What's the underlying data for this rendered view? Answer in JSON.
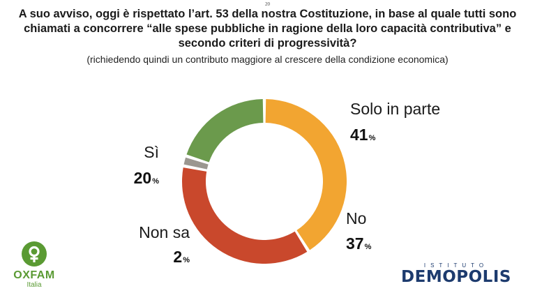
{
  "page": {
    "number": "20",
    "question": "A suo avviso, oggi è rispettato l’art. 53 della nostra Costituzione, in base al quale tutti sono chiamati a concorrere “alle spese pubbliche in ragione della loro capacità contributiva” e secondo criteri di progressività?",
    "subtitle": "(richiedendo quindi un contributo maggiore al crescere della condizione economica)"
  },
  "chart_data": {
    "type": "pie",
    "style": "donut",
    "title": "A suo avviso, oggi è rispettato l’art. 53 della nostra Costituzione, in base al quale tutti sono chiamati a concorrere “alle spese pubbliche in ragione della loro capacità contributiva” e secondo criteri di progressività?",
    "subtitle": "(richiedendo quindi un contributo maggiore al crescere della condizione economica)",
    "value_suffix": "%",
    "slices": [
      {
        "label": "Solo in parte",
        "value": 41,
        "color": "#f2a531"
      },
      {
        "label": "No",
        "value": 37,
        "color": "#c9482c"
      },
      {
        "label": "Non sa",
        "value": 2,
        "color": "#9b9790"
      },
      {
        "label": "Sì",
        "value": 20,
        "color": "#6b9a4c"
      }
    ]
  },
  "logos": {
    "oxfam": {
      "name": "OXFAM",
      "sub": "Italia",
      "color": "#5a9a33"
    },
    "demopolis": {
      "name": "DEMOPOLIS",
      "sub": "ISTITUTO",
      "color": "#1d3b6e"
    }
  }
}
